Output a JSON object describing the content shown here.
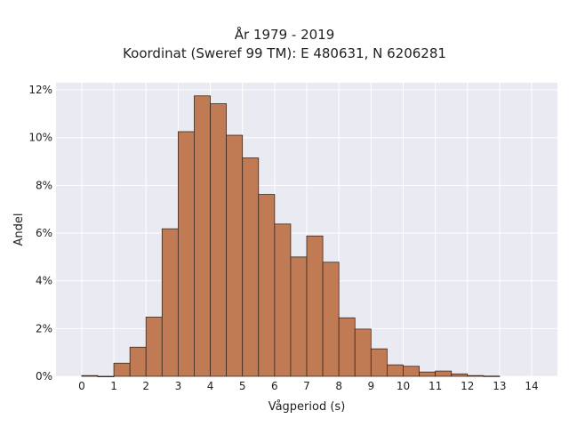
{
  "chart_data": {
    "type": "bar",
    "title": "År 1979 - 2019",
    "subtitle": "Koordinat (Sweref 99 TM): E 480631, N 6206281",
    "xlabel": "Vågperiod (s)",
    "ylabel": "Andel",
    "xlim": [
      -0.8,
      14.8
    ],
    "ylim": [
      0,
      12.3
    ],
    "x_ticks": [
      0,
      1,
      2,
      3,
      4,
      5,
      6,
      7,
      8,
      9,
      10,
      11,
      12,
      13,
      14
    ],
    "y_ticks": [
      0,
      2,
      4,
      6,
      8,
      10,
      12
    ],
    "y_tick_labels": [
      "0%",
      "2%",
      "4%",
      "6%",
      "8%",
      "10%",
      "12%"
    ],
    "bin_width": 0.5,
    "bins": [
      0,
      0.5,
      1,
      1.5,
      2,
      2.5,
      3,
      3.5,
      4,
      4.5,
      5,
      5.5,
      6,
      6.5,
      7,
      7.5,
      8,
      8.5,
      9,
      9.5,
      10,
      10.5,
      11,
      11.5,
      12,
      12.5
    ],
    "values": [
      0.03,
      0.0,
      0.55,
      1.22,
      2.48,
      6.18,
      10.25,
      11.75,
      11.42,
      10.1,
      9.15,
      7.62,
      6.38,
      5.0,
      5.88,
      4.78,
      2.45,
      1.98,
      1.15,
      0.48,
      0.42,
      0.18,
      0.22,
      0.1,
      0.03,
      0.01
    ],
    "grid": true,
    "colors": {
      "bar_fill": "#c07b55",
      "bar_edge": "#3a2a20",
      "plot_bg": "#eaeaf2",
      "grid": "#ffffff"
    }
  }
}
